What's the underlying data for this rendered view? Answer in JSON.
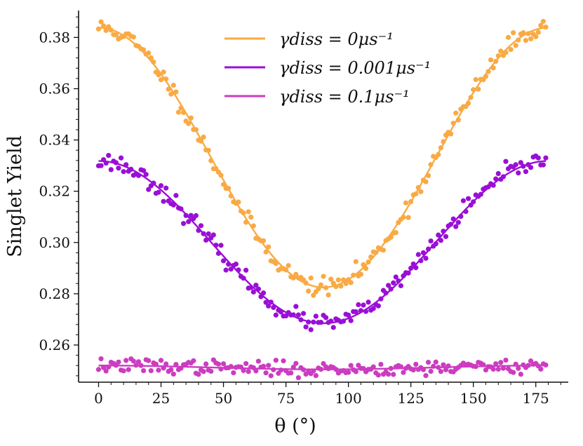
{
  "chart_data": {
    "type": "scatter",
    "xlabel": "θ (°)",
    "ylabel": "Singlet Yield",
    "xlim": [
      -8,
      188
    ],
    "ylim": [
      0.2455,
      0.3905
    ],
    "xticks": [
      0,
      25,
      50,
      75,
      100,
      125,
      150,
      175
    ],
    "yticks": [
      0.26,
      0.28,
      0.3,
      0.32,
      0.34,
      0.36,
      0.38
    ],
    "grid": false,
    "legend_position": "top-center",
    "series": [
      {
        "name": "γdiss = 0μs⁻¹",
        "legend_label": "γ_diss = 0μs⁻¹",
        "color": "#f9aa44",
        "fit": {
          "min": 0.2825,
          "max": 0.3838
        },
        "noise": 0.0018,
        "seed": 11
      },
      {
        "name": "γdiss = 0.001μs⁻¹",
        "legend_label": "γ_diss = 0.001μs⁻¹",
        "color": "#9a0fd6",
        "fit": {
          "min": 0.2685,
          "max": 0.3318
        },
        "noise": 0.0017,
        "seed": 23
      },
      {
        "name": "γdiss = 0.1μs⁻¹",
        "legend_label": "γ_diss = 0.1μs⁻¹",
        "color": "#cc3cc0",
        "fit": {
          "min": 0.2505,
          "max": 0.252
        },
        "noise": 0.0014,
        "seed": 37
      }
    ]
  }
}
